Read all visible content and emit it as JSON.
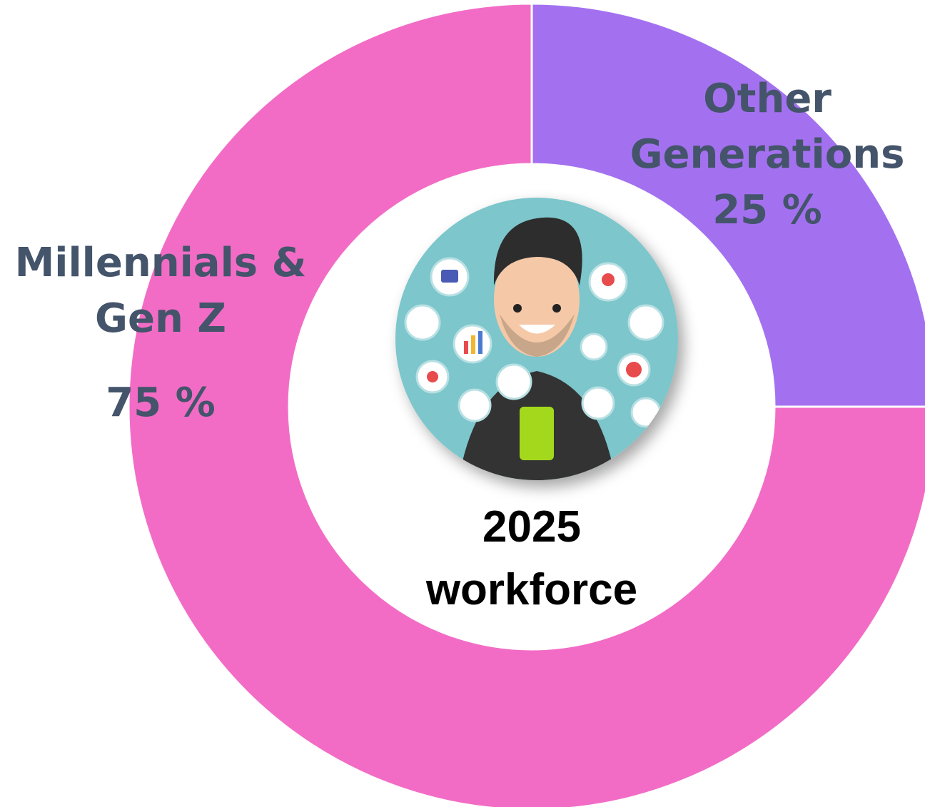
{
  "chart_data": {
    "type": "donut",
    "categories": [
      "Other Generations",
      "Millennials & Gen Z"
    ],
    "values": [
      25,
      75
    ],
    "value_labels": [
      "25 %",
      "75 %"
    ],
    "colors": [
      "#a371f0",
      "#f26cc6"
    ],
    "center_label": "2025 workforce"
  }
}
